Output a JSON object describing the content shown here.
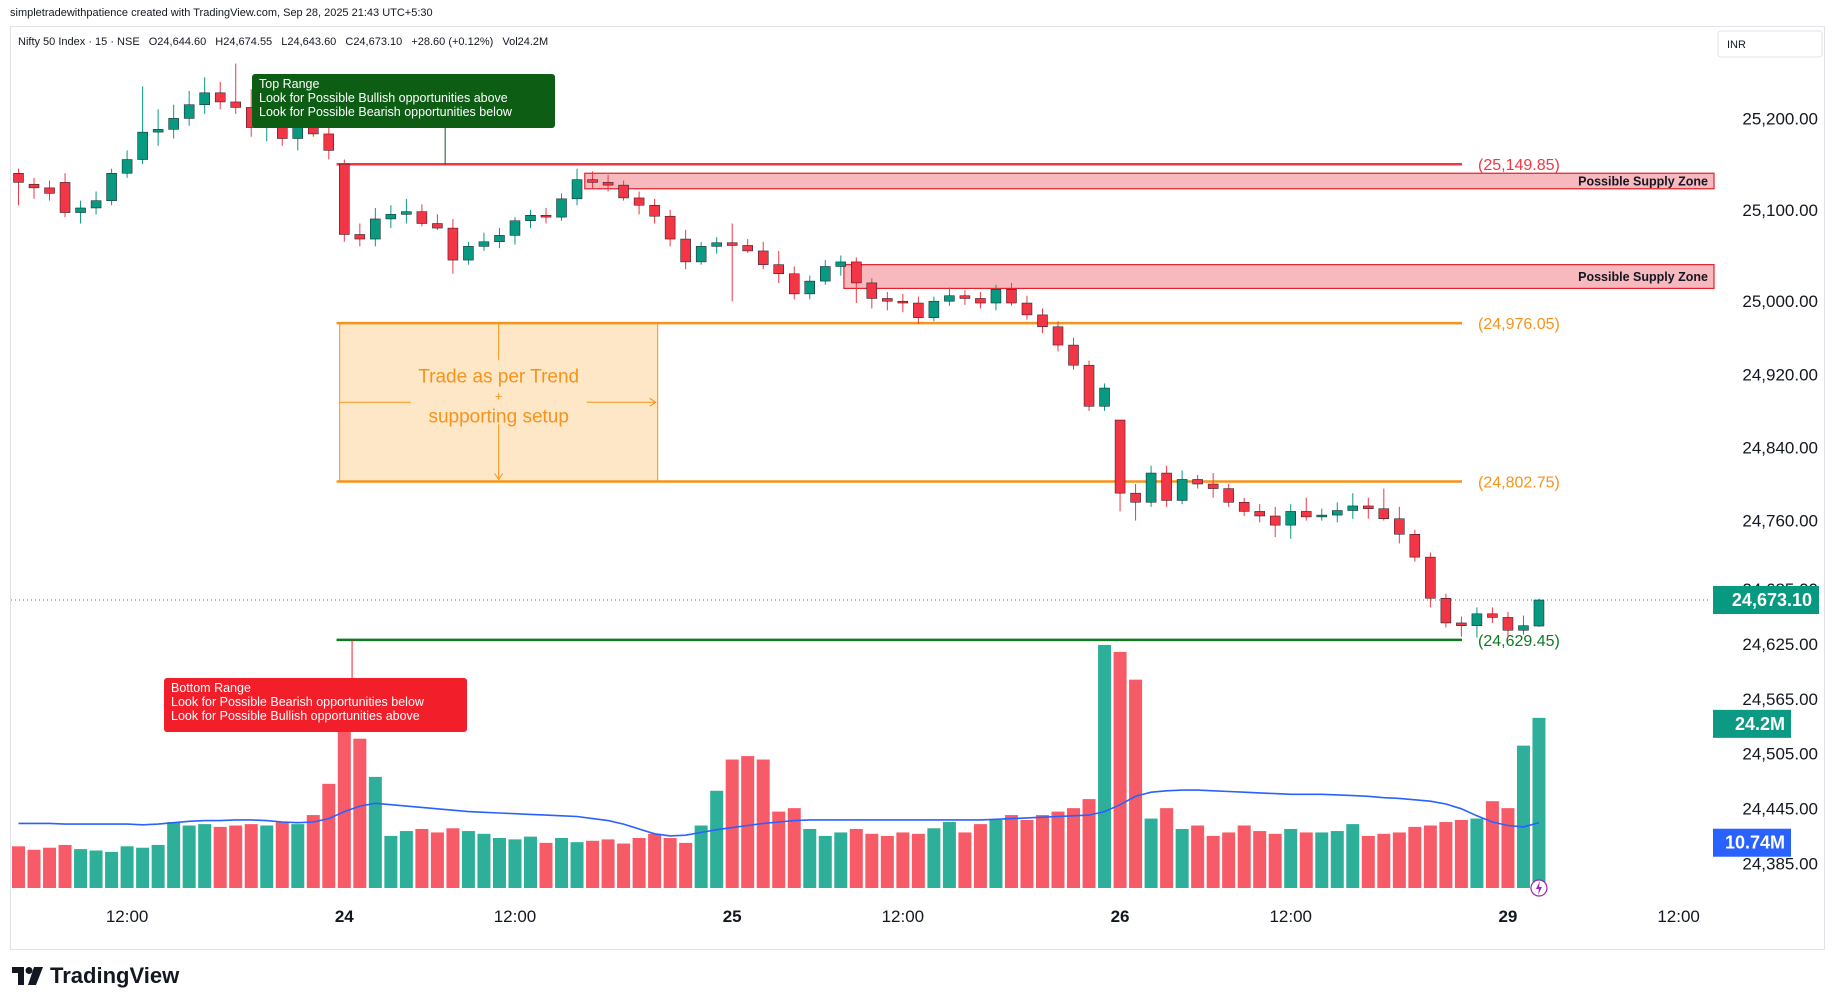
{
  "credit": "simpletradewithpatience created with TradingView.com, Sep 28, 2025 21:43 UTC+5:30",
  "brand": {
    "name": "TradingView"
  },
  "currency": "INR",
  "colors": {
    "up": "#089981",
    "down": "#f23645",
    "ma": "#2962ff",
    "supply": "#e41f2b",
    "mid": "#f7931a",
    "bottom": "#0d7a21"
  },
  "chart_data": {
    "type": "candlestick",
    "symbol_line": {
      "symbol": "Nifty 50 Index · 15 · NSE",
      "o": "O24,644.60",
      "h": "H24,674.55",
      "l": "L24,643.60",
      "c": "C24,673.10",
      "chg": "+28.60 (+0.12%)",
      "vol": "Vol24.2M"
    },
    "y_ticks": [
      "25,200.00",
      "25,100.00",
      "25,000.00",
      "24,920.00",
      "24,840.00",
      "24,760.00",
      "24,685.00",
      "24,625.00",
      "24,565.00",
      "24,505.00",
      "24,445.00",
      "24,385.00"
    ],
    "y_tick_values": [
      25200,
      25100,
      25000,
      24920,
      24840,
      24760,
      24685,
      24625,
      24565,
      24505,
      24445,
      24385
    ],
    "ylim": [
      24358,
      25300
    ],
    "x_ticks": [
      {
        "label": "12:00",
        "bar": 7
      },
      {
        "label": "24",
        "bar": 21
      },
      {
        "label": "12:00",
        "bar": 32
      },
      {
        "label": "25",
        "bar": 46
      },
      {
        "label": "12:00",
        "bar": 57
      },
      {
        "label": "26",
        "bar": 71
      },
      {
        "label": "12:00",
        "bar": 82
      },
      {
        "label": "29",
        "bar": 96
      },
      {
        "label": "12:00",
        "bar": 107
      }
    ],
    "candles": [
      [
        25140,
        25145,
        25105,
        25130
      ],
      [
        25128,
        25135,
        25112,
        25124
      ],
      [
        25124,
        25132,
        25110,
        25118
      ],
      [
        25130,
        25140,
        25092,
        25097
      ],
      [
        25097,
        25110,
        25085,
        25102
      ],
      [
        25102,
        25120,
        25095,
        25110
      ],
      [
        25110,
        25145,
        25105,
        25140
      ],
      [
        25140,
        25165,
        25135,
        25155
      ],
      [
        25155,
        25235,
        25150,
        25185
      ],
      [
        25185,
        25210,
        25170,
        25188
      ],
      [
        25188,
        25215,
        25178,
        25200
      ],
      [
        25200,
        25230,
        25192,
        25215
      ],
      [
        25215,
        25245,
        25205,
        25228
      ],
      [
        25228,
        25240,
        25210,
        25218
      ],
      [
        25218,
        25260,
        25205,
        25212
      ],
      [
        25212,
        25232,
        25180,
        25190
      ],
      [
        25190,
        25205,
        25175,
        25200
      ],
      [
        25200,
        25215,
        25170,
        25178
      ],
      [
        25178,
        25198,
        25165,
        25190
      ],
      [
        25190,
        25210,
        25180,
        25183
      ],
      [
        25183,
        25190,
        25155,
        25165
      ],
      [
        25150,
        25155,
        25065,
        25073
      ],
      [
        25073,
        25085,
        25060,
        25068
      ],
      [
        25068,
        25102,
        25060,
        25090
      ],
      [
        25090,
        25105,
        25080,
        25095
      ],
      [
        25095,
        25112,
        25085,
        25098
      ],
      [
        25098,
        25106,
        25082,
        25085
      ],
      [
        25085,
        25095,
        25078,
        25080
      ],
      [
        25080,
        25090,
        25030,
        25045
      ],
      [
        25045,
        25065,
        25040,
        25060
      ],
      [
        25060,
        25075,
        25055,
        25065
      ],
      [
        25065,
        25080,
        25058,
        25072
      ],
      [
        25072,
        25092,
        25062,
        25088
      ],
      [
        25088,
        25100,
        25080,
        25094
      ],
      [
        25094,
        25102,
        25085,
        25092
      ],
      [
        25092,
        25118,
        25088,
        25112
      ],
      [
        25112,
        25145,
        25105,
        25133
      ],
      [
        25133,
        25142,
        25123,
        25130
      ],
      [
        25130,
        25138,
        25120,
        25127
      ],
      [
        25127,
        25132,
        25110,
        25113
      ],
      [
        25113,
        25120,
        25095,
        25105
      ],
      [
        25105,
        25112,
        25085,
        25093
      ],
      [
        25093,
        25100,
        25060,
        25068
      ],
      [
        25068,
        25078,
        25035,
        25043
      ],
      [
        25043,
        25065,
        25040,
        25060
      ],
      [
        25060,
        25070,
        25052,
        25064
      ],
      [
        25064,
        25085,
        25000,
        25061
      ],
      [
        25061,
        25068,
        25053,
        25055
      ],
      [
        25055,
        25065,
        25035,
        25040
      ],
      [
        25040,
        25055,
        25020,
        25030
      ],
      [
        25030,
        25038,
        25002,
        25008
      ],
      [
        25008,
        25028,
        25002,
        25022
      ],
      [
        25022,
        25045,
        25018,
        25038
      ],
      [
        25038,
        25050,
        25028,
        25043
      ],
      [
        25043,
        25048,
        24998,
        25020
      ],
      [
        25020,
        25025,
        24992,
        25003
      ],
      [
        25003,
        25010,
        24990,
        25000
      ],
      [
        25000,
        25008,
        24988,
        24998
      ],
      [
        24998,
        25005,
        24975,
        24982
      ],
      [
        24982,
        25005,
        24978,
        25000
      ],
      [
        25000,
        25015,
        24995,
        25006
      ],
      [
        25006,
        25012,
        24996,
        25003
      ],
      [
        25003,
        25010,
        24992,
        24998
      ],
      [
        24998,
        25018,
        24990,
        25013
      ],
      [
        25013,
        25020,
        24995,
        24998
      ],
      [
        24998,
        25006,
        24980,
        24985
      ],
      [
        24985,
        24992,
        24965,
        24972
      ],
      [
        24972,
        24978,
        24945,
        24952
      ],
      [
        24952,
        24960,
        24925,
        24930
      ],
      [
        24930,
        24935,
        24880,
        24885
      ],
      [
        24885,
        24910,
        24880,
        24905
      ],
      [
        24870,
        24870,
        24770,
        24790
      ],
      [
        24790,
        24800,
        24760,
        24780
      ],
      [
        24780,
        24820,
        24775,
        24812
      ],
      [
        24812,
        24820,
        24775,
        24782
      ],
      [
        24782,
        24815,
        24778,
        24805
      ],
      [
        24805,
        24810,
        24795,
        24800
      ],
      [
        24800,
        24812,
        24785,
        24795
      ],
      [
        24795,
        24800,
        24775,
        24780
      ],
      [
        24780,
        24785,
        24765,
        24770
      ],
      [
        24770,
        24778,
        24758,
        24765
      ],
      [
        24765,
        24775,
        24742,
        24755
      ],
      [
        24755,
        24778,
        24740,
        24770
      ],
      [
        24770,
        24785,
        24760,
        24764
      ],
      [
        24764,
        24773,
        24760,
        24766
      ],
      [
        24766,
        24780,
        24758,
        24771
      ],
      [
        24771,
        24790,
        24762,
        24776
      ],
      [
        24776,
        24785,
        24762,
        24773
      ],
      [
        24773,
        24795,
        24760,
        24762
      ],
      [
        24762,
        24775,
        24735,
        24745
      ],
      [
        24745,
        24750,
        24715,
        24720
      ],
      [
        24720,
        24725,
        24665,
        24675
      ],
      [
        24675,
        24680,
        24643,
        24648
      ],
      [
        24648,
        24655,
        24633,
        24645
      ],
      [
        24645,
        24665,
        24632,
        24658
      ],
      [
        24658,
        24665,
        24648,
        24654
      ],
      [
        24654,
        24660,
        24632,
        24640
      ],
      [
        24640,
        24656,
        24635,
        24645
      ],
      [
        24644.6,
        24674.55,
        24643.6,
        24673.1
      ]
    ],
    "volume": [
      60,
      55,
      58,
      62,
      56,
      54,
      52,
      60,
      58,
      62,
      95,
      90,
      92,
      88,
      90,
      92,
      90,
      95,
      92,
      105,
      150,
      240,
      215,
      160,
      75,
      82,
      85,
      80,
      86,
      82,
      78,
      72,
      70,
      74,
      65,
      72,
      66,
      68,
      70,
      64,
      72,
      78,
      72,
      65,
      90,
      140,
      185,
      190,
      185,
      110,
      115,
      85,
      75,
      80,
      85,
      78,
      75,
      80,
      78,
      86,
      95,
      80,
      92,
      98,
      105,
      98,
      105,
      110,
      115,
      128,
      350,
      340,
      300,
      100,
      115,
      85,
      90,
      75,
      80,
      90,
      82,
      78,
      85,
      80,
      80,
      82,
      92,
      75,
      78,
      80,
      88,
      90,
      95,
      98,
      100,
      125,
      115,
      205,
      245
    ],
    "volume_ma": [
      93,
      93,
      93,
      92,
      92,
      92,
      92,
      92,
      91,
      92,
      94,
      96,
      97,
      97,
      98,
      98,
      97,
      95,
      94,
      95,
      100,
      110,
      118,
      122,
      120,
      118,
      116,
      114,
      112,
      110,
      109,
      108,
      107,
      106,
      105,
      104,
      103,
      100,
      97,
      92,
      85,
      78,
      75,
      76,
      80,
      84,
      87,
      90,
      93,
      95,
      97,
      98,
      98,
      98,
      98,
      98,
      98,
      98,
      98,
      98,
      98,
      98,
      98,
      99,
      100,
      101,
      102,
      103,
      104,
      105,
      110,
      120,
      132,
      138,
      140,
      141,
      141,
      140,
      139,
      138,
      137,
      136,
      135,
      135,
      135,
      134,
      133,
      132,
      130,
      129,
      127,
      125,
      121,
      114,
      104,
      95,
      90,
      88,
      94
    ],
    "vol_scale_max": 360,
    "levels": [
      {
        "price": 25149.85,
        "label": "(25,149.85)",
        "color": "#f23645",
        "from_bar": 20.5,
        "to_bar": 100.5
      },
      {
        "price": 24976.05,
        "label": "(24,976.05)",
        "color": "#f7931a",
        "from_bar": 20.5,
        "to_bar": 100.5
      },
      {
        "price": 24802.75,
        "label": "(24,802.75)",
        "color": "#f7931a",
        "from_bar": 20.5,
        "to_bar": 100.5
      },
      {
        "price": 24629.45,
        "label": "(24,629.45)",
        "color": "#0d7a21",
        "from_bar": 20.5,
        "to_bar": 100.5
      }
    ],
    "zones": [
      {
        "label": "Possible Supply Zone",
        "top": 25140,
        "bottom": 25123,
        "from_bar": 36.5
      },
      {
        "label": "Possible Supply Zone",
        "top": 25040,
        "bottom": 25014,
        "from_bar": 53.2
      }
    ],
    "range_box": {
      "top": 24976.05,
      "bottom": 24802.75,
      "from_bar": 20.7,
      "to_bar": 41.2,
      "line1": "Trade as per Trend",
      "line2": "+",
      "line3": "supporting setup"
    },
    "callouts": [
      {
        "title": "Top Range",
        "line1": "Look for Possible Bullish opportunities above",
        "line2": "Look for Possible Bearish opportunities below",
        "anchor_bar": 27.5,
        "anchor_price": 25149.85,
        "bg": "#0d5e14"
      },
      {
        "title": "Bottom Range",
        "line1": "Look for Possible Bearish opportunities below",
        "line2": "Look for Possible Bullish opportunities above",
        "anchor_bar": 21.5,
        "anchor_price": 24629.45,
        "bg": "#f21f2b"
      }
    ],
    "price_labels": {
      "last": "24,673.10",
      "volume": "24.2M",
      "volume_ma": "10.74M"
    },
    "last_price": 24673.1
  }
}
